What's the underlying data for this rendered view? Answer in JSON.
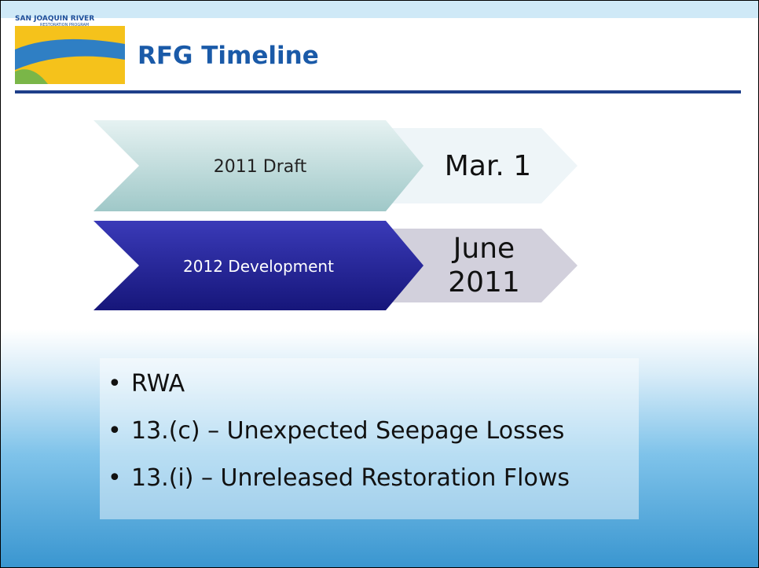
{
  "header": {
    "logo_text": "SAN JOAQUIN RIVER",
    "logo_subtext": "RESTORATION PROGRAM",
    "title": "RFG Timeline"
  },
  "timeline": [
    {
      "label": "2011 Draft",
      "date": "Mar. 1"
    },
    {
      "label": "2012 Development",
      "date_lines": [
        "June",
        "2011"
      ]
    }
  ],
  "bullets": [
    "RWA",
    "13.(c) – Unexpected Seepage Losses",
    "13.(i) – Unreleased Restoration Flows"
  ]
}
